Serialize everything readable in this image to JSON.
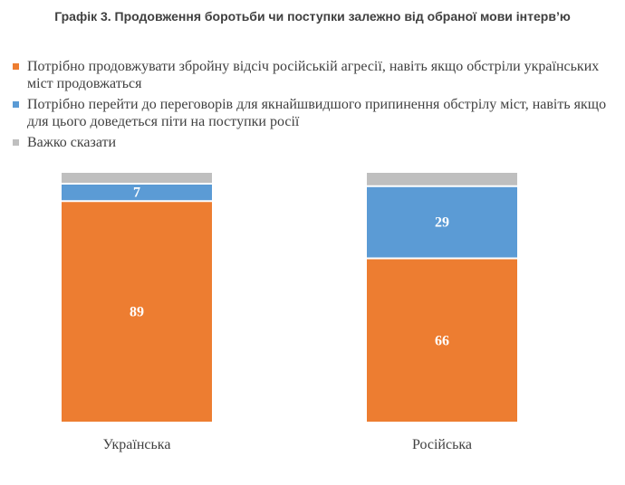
{
  "chart_data": {
    "type": "bar",
    "stacked": true,
    "title": "Графік 3. Продовження боротьби чи поступки залежно від обраної мови інтерв’ю",
    "categories": [
      "Українська",
      "Російська"
    ],
    "series": [
      {
        "name": "Потрібно продовжувати збройну відсіч російській агресії, навіть якщо обстріли українських міст продовжаться",
        "color": "#ED7D31",
        "values": [
          89,
          66
        ]
      },
      {
        "name": "Потрібно перейти до переговорів для якнайшвидшого припинення обстрілу міст, навіть якщо для цього доведеться піти на поступки росії",
        "color": "#5B9BD5",
        "values": [
          7,
          29
        ]
      },
      {
        "name": "Важко сказати",
        "color": "#BFBFBF",
        "values": [
          4,
          5
        ]
      }
    ],
    "data_labels": [
      {
        "series": 0,
        "category": 0,
        "text": "89"
      },
      {
        "series": 1,
        "category": 0,
        "text": "7"
      },
      {
        "series": 0,
        "category": 1,
        "text": "66"
      },
      {
        "series": 1,
        "category": 1,
        "text": "29"
      }
    ],
    "ylim": [
      0,
      100
    ],
    "xlabel": "",
    "ylabel": "",
    "grid": false,
    "legend_position": "top"
  }
}
